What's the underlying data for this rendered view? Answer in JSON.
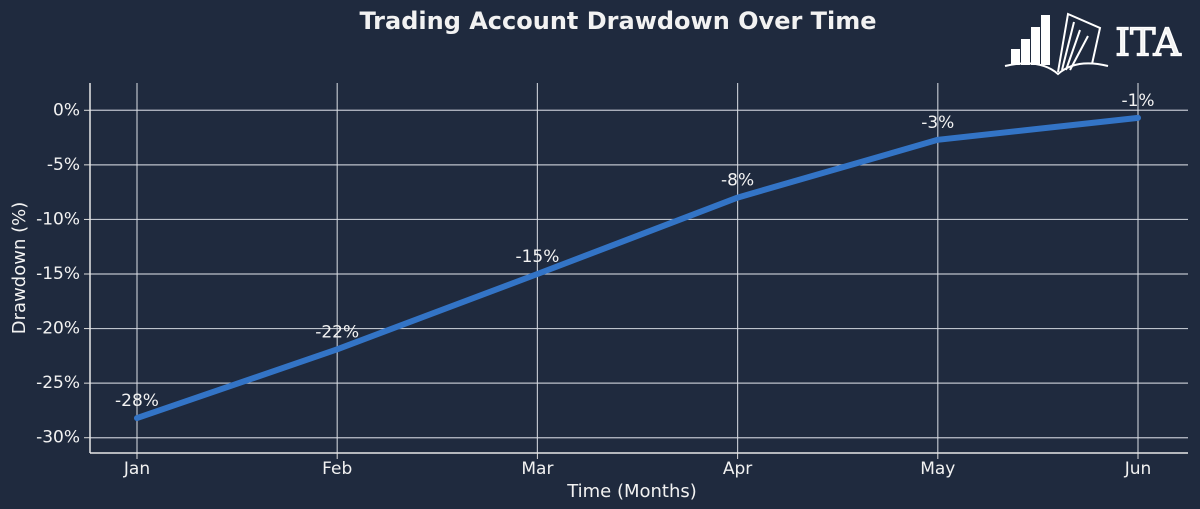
{
  "chart_data": {
    "type": "line",
    "title": "Trading Account Drawdown Over Time",
    "logo": "ITA",
    "x_label": "Time (Months)",
    "y_label": "Drawdown (%)",
    "categories": [
      "Jan",
      "Feb",
      "Mar",
      "Apr",
      "May",
      "Jun"
    ],
    "series": [
      {
        "name": "Drawdown",
        "color": "#3374c6",
        "values": [
          -28.2,
          -21.9,
          -15,
          -8,
          -2.7,
          -0.7
        ],
        "value_labels": [
          "-28%",
          "-22%",
          "-15%",
          "-8%",
          "-3%",
          "-1%"
        ]
      }
    ],
    "ylim": [
      -31.4,
      2.5
    ],
    "yticks": [
      {
        "value": 0,
        "label": "0%"
      },
      {
        "value": -5,
        "label": "-5%"
      },
      {
        "value": -10,
        "label": "-10%"
      },
      {
        "value": -15,
        "label": "-15%"
      },
      {
        "value": -20,
        "label": "-20%"
      },
      {
        "value": -25,
        "label": "-25%"
      },
      {
        "value": -30,
        "label": "-30%"
      }
    ],
    "grid": true
  }
}
